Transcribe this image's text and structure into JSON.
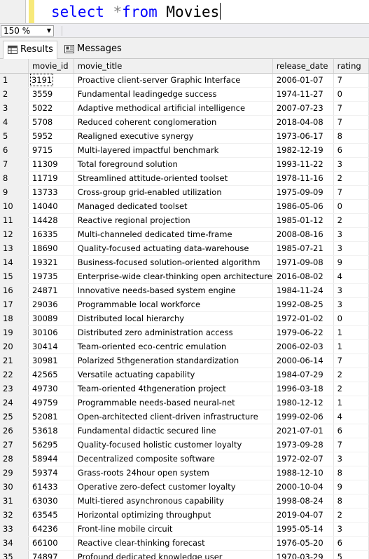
{
  "editor": {
    "keyword_select": "select",
    "operator": "*",
    "keyword_from": "from",
    "table_name": "Movies"
  },
  "zoom": {
    "value": "150 %"
  },
  "tabs": [
    {
      "label": "Results",
      "icon": "grid-icon",
      "active": true
    },
    {
      "label": "Messages",
      "icon": "messages-icon",
      "active": false
    }
  ],
  "grid": {
    "columns": [
      "",
      "movie_id",
      "movie_title",
      "release_date",
      "rating"
    ],
    "rows": [
      [
        "1",
        "3191",
        "Proactive client-server Graphic Interface",
        "2006-01-07",
        "7"
      ],
      [
        "2",
        "3559",
        "Fundamental leadingedge success",
        "1974-11-27",
        "0"
      ],
      [
        "3",
        "5022",
        "Adaptive methodical artificial intelligence",
        "2007-07-23",
        "7"
      ],
      [
        "4",
        "5708",
        "Reduced coherent conglomeration",
        "2018-04-08",
        "7"
      ],
      [
        "5",
        "5952",
        "Realigned executive synergy",
        "1973-06-17",
        "8"
      ],
      [
        "6",
        "9715",
        "Multi-layered impactful benchmark",
        "1982-12-19",
        "6"
      ],
      [
        "7",
        "11309",
        "Total foreground solution",
        "1993-11-22",
        "3"
      ],
      [
        "8",
        "11719",
        "Streamlined attitude-oriented toolset",
        "1978-11-16",
        "2"
      ],
      [
        "9",
        "13733",
        "Cross-group grid-enabled utilization",
        "1975-09-09",
        "7"
      ],
      [
        "10",
        "14040",
        "Managed dedicated toolset",
        "1986-05-06",
        "0"
      ],
      [
        "11",
        "14428",
        "Reactive regional projection",
        "1985-01-12",
        "2"
      ],
      [
        "12",
        "16335",
        "Multi-channeled dedicated time-frame",
        "2008-08-16",
        "3"
      ],
      [
        "13",
        "18690",
        "Quality-focused actuating data-warehouse",
        "1985-07-21",
        "3"
      ],
      [
        "14",
        "19321",
        "Business-focused solution-oriented algorithm",
        "1971-09-08",
        "9"
      ],
      [
        "15",
        "19735",
        "Enterprise-wide clear-thinking open architecture",
        "2016-08-02",
        "4"
      ],
      [
        "16",
        "24871",
        "Innovative needs-based system engine",
        "1984-11-24",
        "3"
      ],
      [
        "17",
        "29036",
        "Programmable local workforce",
        "1992-08-25",
        "3"
      ],
      [
        "18",
        "30089",
        "Distributed local hierarchy",
        "1972-01-02",
        "0"
      ],
      [
        "19",
        "30106",
        "Distributed zero administration access",
        "1979-06-22",
        "1"
      ],
      [
        "20",
        "30414",
        "Team-oriented eco-centric emulation",
        "2006-02-03",
        "1"
      ],
      [
        "21",
        "30981",
        "Polarized 5thgeneration standardization",
        "2000-06-14",
        "7"
      ],
      [
        "22",
        "42565",
        "Versatile actuating capability",
        "1984-07-29",
        "2"
      ],
      [
        "23",
        "49730",
        "Team-oriented 4thgeneration project",
        "1996-03-18",
        "2"
      ],
      [
        "24",
        "49759",
        "Programmable needs-based neural-net",
        "1980-12-12",
        "1"
      ],
      [
        "25",
        "52081",
        "Open-architected client-driven infrastructure",
        "1999-02-06",
        "4"
      ],
      [
        "26",
        "53618",
        "Fundamental didactic secured line",
        "2021-07-01",
        "6"
      ],
      [
        "27",
        "56295",
        "Quality-focused holistic customer loyalty",
        "1973-09-28",
        "7"
      ],
      [
        "28",
        "58944",
        "Decentralized composite software",
        "1972-02-07",
        "3"
      ],
      [
        "29",
        "59374",
        "Grass-roots 24hour open system",
        "1988-12-10",
        "8"
      ],
      [
        "30",
        "61433",
        "Operative zero-defect customer loyalty",
        "2000-10-04",
        "9"
      ],
      [
        "31",
        "63030",
        "Multi-tiered asynchronous capability",
        "1998-08-24",
        "8"
      ],
      [
        "32",
        "63545",
        "Horizontal optimizing throughput",
        "2019-04-07",
        "2"
      ],
      [
        "33",
        "64236",
        "Front-line mobile circuit",
        "1995-05-14",
        "3"
      ],
      [
        "34",
        "66100",
        "Reactive clear-thinking forecast",
        "1976-05-20",
        "6"
      ],
      [
        "35",
        "74897",
        "Profound dedicated knowledge user",
        "1970-03-29",
        "5"
      ]
    ]
  },
  "colors": {
    "keyword": "#0000ff",
    "operator": "#808080",
    "header_bg": "#f0f0f0"
  }
}
